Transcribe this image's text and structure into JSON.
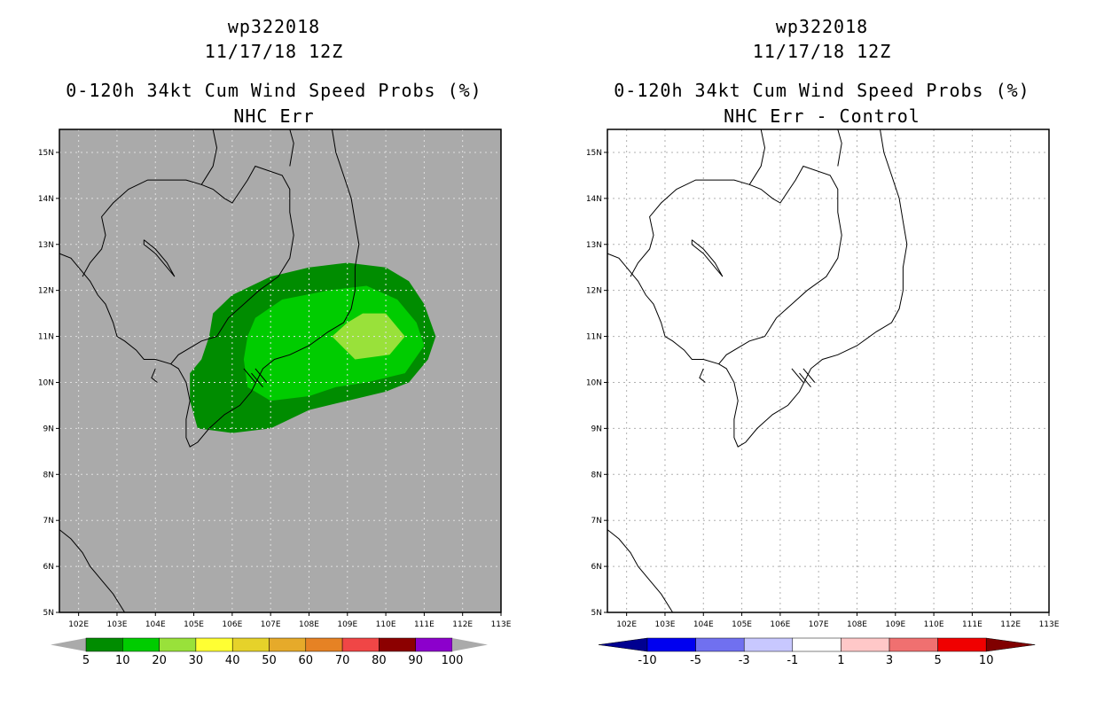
{
  "panels": [
    {
      "title_line1": "wp322018",
      "title_line2": "11/17/18 12Z",
      "title_line3": "0-120h 34kt Cum Wind Speed Probs (%)",
      "title_line4": "NHC Err",
      "background": "#aaaaaa",
      "colorbar": {
        "colors": [
          "#008c00",
          "#00cc00",
          "#99e13a",
          "#ffff33",
          "#e6d22a",
          "#e6aa2a",
          "#e68224",
          "#f04646",
          "#8c0000",
          "#8c00cc"
        ],
        "labels": [
          "5",
          "10",
          "20",
          "30",
          "40",
          "50",
          "60",
          "70",
          "80",
          "90",
          "100"
        ],
        "end_color": "#aaaaaa"
      }
    },
    {
      "title_line1": "wp322018",
      "title_line2": "11/17/18 12Z",
      "title_line3": "0-120h 34kt Cum Wind Speed Probs (%)",
      "title_line4": "NHC Err - Control",
      "background": "#ffffff",
      "colorbar": {
        "colors": [
          "#0000f0",
          "#7070f0",
          "#c8c8ff",
          "#ffffff",
          "#ffc8c8",
          "#f07070",
          "#f00000"
        ],
        "labels": [
          "-10",
          "-5",
          "-3",
          "-1",
          "1",
          "3",
          "5",
          "10"
        ],
        "end_left": "#000090",
        "end_right": "#800000"
      }
    }
  ],
  "axes": {
    "x_ticks": [
      "102E",
      "103E",
      "104E",
      "105E",
      "106E",
      "107E",
      "108E",
      "109E",
      "110E",
      "111E",
      "112E",
      "113E"
    ],
    "y_ticks": [
      "15N",
      "14N",
      "13N",
      "12N",
      "11N",
      "10N",
      "9N",
      "8N",
      "7N",
      "6N",
      "5N"
    ]
  },
  "chart_data": {
    "type": "map",
    "lon_range": [
      101.5,
      113
    ],
    "lat_range": [
      5,
      15.5
    ],
    "contours_nhc_err": [
      {
        "level": "5-10",
        "color": "#008c00"
      },
      {
        "level": "10-20",
        "color": "#00cc00"
      },
      {
        "level": "20-30",
        "color": "#99e13a"
      }
    ]
  }
}
